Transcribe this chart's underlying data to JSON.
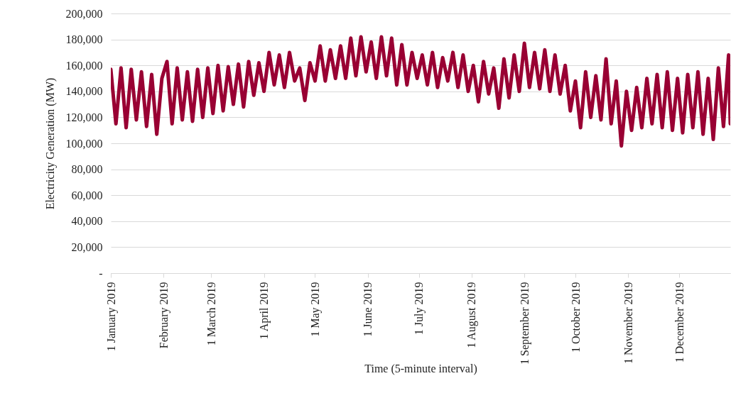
{
  "chart_data": {
    "type": "line",
    "xlabel": "Time (5-minute interval)",
    "ylabel": "Electricity Generation (MW)",
    "x": [
      "2019-01-01",
      "2019-01-04",
      "2019-01-07",
      "2019-01-10",
      "2019-01-13",
      "2019-01-16",
      "2019-01-19",
      "2019-01-22",
      "2019-01-25",
      "2019-01-28",
      "2019-01-31",
      "2019-02-03",
      "2019-02-06",
      "2019-02-09",
      "2019-02-12",
      "2019-02-15",
      "2019-02-18",
      "2019-02-21",
      "2019-02-24",
      "2019-02-27",
      "2019-03-02",
      "2019-03-05",
      "2019-03-08",
      "2019-03-11",
      "2019-03-14",
      "2019-03-17",
      "2019-03-20",
      "2019-03-23",
      "2019-03-26",
      "2019-03-29",
      "2019-04-01",
      "2019-04-04",
      "2019-04-07",
      "2019-04-10",
      "2019-04-13",
      "2019-04-16",
      "2019-04-19",
      "2019-04-22",
      "2019-04-25",
      "2019-04-28",
      "2019-05-01",
      "2019-05-04",
      "2019-05-07",
      "2019-05-10",
      "2019-05-13",
      "2019-05-16",
      "2019-05-19",
      "2019-05-22",
      "2019-05-25",
      "2019-05-28",
      "2019-05-31",
      "2019-06-03",
      "2019-06-06",
      "2019-06-09",
      "2019-06-12",
      "2019-06-15",
      "2019-06-18",
      "2019-06-21",
      "2019-06-24",
      "2019-06-27",
      "2019-06-30",
      "2019-07-03",
      "2019-07-06",
      "2019-07-09",
      "2019-07-12",
      "2019-07-15",
      "2019-07-18",
      "2019-07-21",
      "2019-07-24",
      "2019-07-27",
      "2019-07-30",
      "2019-08-02",
      "2019-08-05",
      "2019-08-08",
      "2019-08-11",
      "2019-08-14",
      "2019-08-17",
      "2019-08-20",
      "2019-08-23",
      "2019-08-26",
      "2019-08-29",
      "2019-09-01",
      "2019-09-04",
      "2019-09-07",
      "2019-09-10",
      "2019-09-13",
      "2019-09-16",
      "2019-09-19",
      "2019-09-22",
      "2019-09-25",
      "2019-09-28",
      "2019-10-01",
      "2019-10-04",
      "2019-10-07",
      "2019-10-10",
      "2019-10-13",
      "2019-10-16",
      "2019-10-19",
      "2019-10-22",
      "2019-10-25",
      "2019-10-28",
      "2019-10-31",
      "2019-11-03",
      "2019-11-06",
      "2019-11-09",
      "2019-11-12",
      "2019-11-15",
      "2019-11-18",
      "2019-11-21",
      "2019-11-24",
      "2019-11-27",
      "2019-11-30",
      "2019-12-03",
      "2019-12-06",
      "2019-12-09",
      "2019-12-12",
      "2019-12-15",
      "2019-12-18",
      "2019-12-21",
      "2019-12-24",
      "2019-12-27",
      "2019-12-30",
      "2019-12-31"
    ],
    "series": [
      {
        "color": "#990033",
        "values": [
          157000,
          115000,
          158000,
          112000,
          157000,
          118000,
          155000,
          113000,
          153000,
          107000,
          150000,
          163000,
          115000,
          158000,
          118000,
          155000,
          117000,
          157000,
          120000,
          158000,
          123000,
          160000,
          125000,
          159000,
          130000,
          161000,
          128000,
          163000,
          137000,
          162000,
          140000,
          170000,
          145000,
          168000,
          143000,
          170000,
          148000,
          158000,
          133000,
          162000,
          148000,
          175000,
          148000,
          172000,
          150000,
          175000,
          150000,
          181000,
          152000,
          182000,
          155000,
          178000,
          150000,
          182000,
          152000,
          181000,
          145000,
          176000,
          145000,
          170000,
          150000,
          168000,
          145000,
          170000,
          143000,
          166000,
          148000,
          170000,
          143000,
          168000,
          140000,
          160000,
          132000,
          163000,
          138000,
          158000,
          127000,
          165000,
          135000,
          168000,
          140000,
          177000,
          143000,
          170000,
          142000,
          172000,
          140000,
          168000,
          138000,
          160000,
          125000,
          148000,
          112000,
          155000,
          120000,
          152000,
          118000,
          165000,
          115000,
          148000,
          98000,
          140000,
          110000,
          143000,
          112000,
          150000,
          115000,
          153000,
          112000,
          155000,
          110000,
          150000,
          108000,
          153000,
          112000,
          155000,
          107000,
          150000,
          103000,
          158000,
          113000,
          168000,
          115000
        ]
      }
    ],
    "xlim": [
      "2019-01-01",
      "2019-12-31"
    ],
    "xticks": [
      {
        "value": "2019-01-01",
        "label": "1 January 2019"
      },
      {
        "value": "2019-02-01",
        "label": "February 2019"
      },
      {
        "value": "2019-03-01",
        "label": "1 March 2019"
      },
      {
        "value": "2019-04-01",
        "label": "1 April 2019"
      },
      {
        "value": "2019-05-01",
        "label": "1 May 2019"
      },
      {
        "value": "2019-06-01",
        "label": "1 June 2019"
      },
      {
        "value": "2019-07-01",
        "label": "1 July 2019"
      },
      {
        "value": "2019-08-01",
        "label": "1 August 2019"
      },
      {
        "value": "2019-09-01",
        "label": "1 September 2019"
      },
      {
        "value": "2019-10-01",
        "label": "1 October 2019"
      },
      {
        "value": "2019-11-01",
        "label": "1 November 2019"
      },
      {
        "value": "2019-12-01",
        "label": "1 December 2019"
      }
    ],
    "ylim": [
      0,
      200000
    ],
    "yticks": [
      {
        "value": 0,
        "label": "-"
      },
      {
        "value": 20000,
        "label": "20,000"
      },
      {
        "value": 40000,
        "label": "40,000"
      },
      {
        "value": 60000,
        "label": "60,000"
      },
      {
        "value": 80000,
        "label": "80,000"
      },
      {
        "value": 100000,
        "label": "100,000"
      },
      {
        "value": 120000,
        "label": "120,000"
      },
      {
        "value": 140000,
        "label": "140,000"
      },
      {
        "value": 160000,
        "label": "160,000"
      },
      {
        "value": 180000,
        "label": "180,000"
      },
      {
        "value": 200000,
        "label": "200,000"
      }
    ],
    "grid": "y",
    "legend": false,
    "marker": "none",
    "line_style": "solid"
  }
}
